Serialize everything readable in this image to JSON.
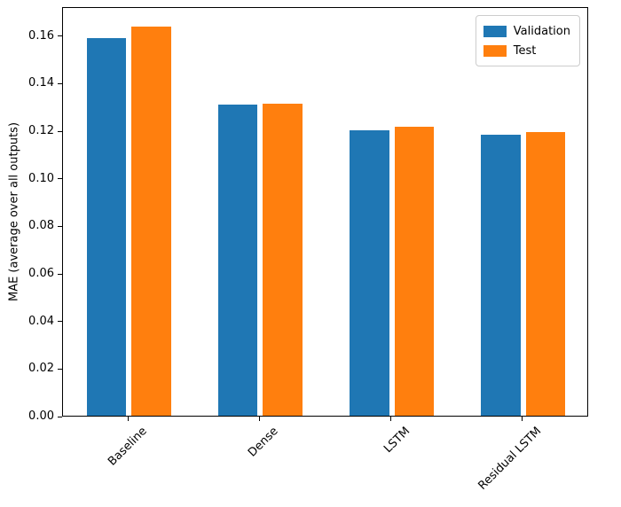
{
  "chart_data": {
    "type": "bar",
    "title": "",
    "xlabel": "",
    "ylabel": "MAE (average over all outputs)",
    "categories": [
      "Baseline",
      "Dense",
      "LSTM",
      "Residual LSTM"
    ],
    "series": [
      {
        "name": "Validation",
        "color": "#1f77b4",
        "values": [
          0.1589,
          0.1307,
          0.12,
          0.1182
        ]
      },
      {
        "name": "Test",
        "color": "#ff7f0e",
        "values": [
          0.1638,
          0.1312,
          0.1215,
          0.1192
        ]
      }
    ],
    "ylim": [
      0.0,
      0.1722
    ],
    "yticks": [
      0.0,
      0.02,
      0.04,
      0.06,
      0.08,
      0.1,
      0.12,
      0.14,
      0.16
    ],
    "ytick_labels": [
      "0.00",
      "0.02",
      "0.04",
      "0.06",
      "0.08",
      "0.10",
      "0.12",
      "0.14",
      "0.16"
    ],
    "x_tick_rotation_deg": 45,
    "grid": false,
    "legend_position": "upper right",
    "bar_width_fraction": 0.3,
    "bar_offset_fraction": 0.17,
    "axis_color": "#000000",
    "background_color": "#ffffff"
  }
}
